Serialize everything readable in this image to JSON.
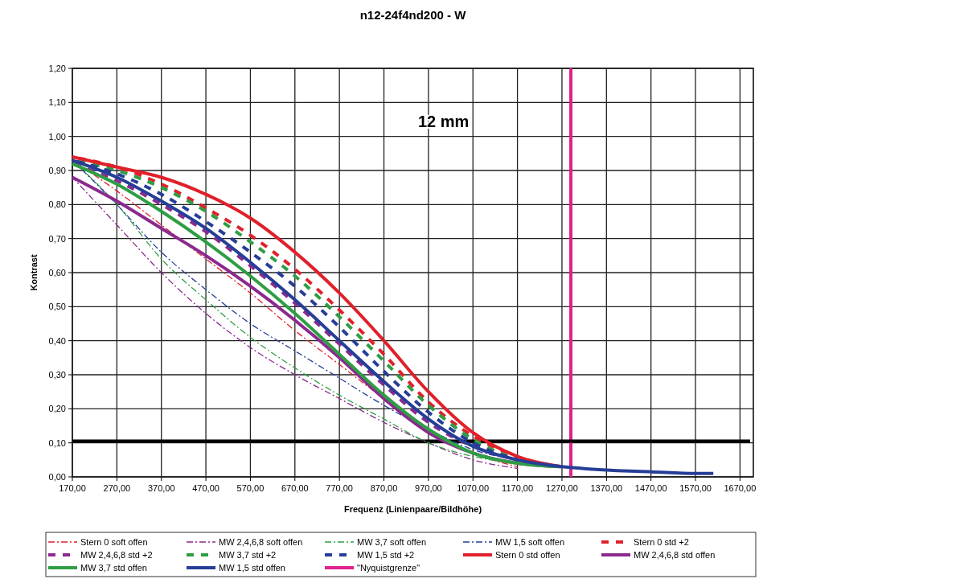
{
  "chart_data": {
    "type": "line",
    "title": "n12-24f4nd200 - W",
    "xlabel": "Frequenz (Linienpaare/Bildhöhe)",
    "ylabel": "Kontrast",
    "annotations": [
      "12 mm"
    ],
    "x": [
      170,
      270,
      370,
      470,
      570,
      670,
      770,
      870,
      970,
      1070,
      1170,
      1270,
      1370,
      1470,
      1570,
      1610
    ],
    "series": [
      {
        "name": "Stern 0 soft offen",
        "color": "#e0202a",
        "line_style": "dotted",
        "values": [
          0.93,
          0.84,
          0.74,
          0.64,
          0.54,
          0.43,
          0.33,
          0.23,
          0.14,
          0.07,
          0.03,
          null,
          null,
          null,
          null,
          null
        ]
      },
      {
        "name": "MW 2,4,6,8 soft offen",
        "color": "#8b2a8e",
        "line_style": "dotted",
        "values": [
          0.88,
          0.74,
          0.6,
          0.48,
          0.38,
          0.3,
          0.23,
          0.16,
          0.1,
          0.05,
          0.025,
          null,
          null,
          null,
          null,
          null
        ]
      },
      {
        "name": "MW 3,7 soft offen",
        "color": "#2e9e44",
        "line_style": "dotted",
        "values": [
          0.93,
          0.8,
          0.64,
          0.52,
          0.41,
          0.32,
          0.24,
          0.17,
          0.1,
          0.06,
          0.04,
          null,
          null,
          null,
          null,
          null
        ]
      },
      {
        "name": "MW 1,5 soft offen",
        "color": "#263e97",
        "line_style": "dotted",
        "values": [
          0.93,
          0.8,
          0.66,
          0.55,
          0.45,
          0.37,
          0.29,
          0.21,
          0.14,
          0.08,
          0.05,
          null,
          null,
          null,
          null,
          null
        ]
      },
      {
        "name": "Stern 0 std +2",
        "color": "#e0202a",
        "line_style": "dashed",
        "values": [
          0.94,
          0.91,
          0.86,
          0.79,
          0.71,
          0.61,
          0.49,
          0.36,
          0.22,
          0.12,
          0.06,
          null,
          null,
          null,
          null,
          null
        ]
      },
      {
        "name": "MW 2,4,6,8 std +2",
        "color": "#8b2a8e",
        "line_style": "dashed",
        "values": [
          0.92,
          0.87,
          0.8,
          0.72,
          0.62,
          0.51,
          0.39,
          0.27,
          0.16,
          0.09,
          0.05,
          null,
          null,
          null,
          null,
          null
        ]
      },
      {
        "name": "MW 3,7 std +2",
        "color": "#2e9e44",
        "line_style": "dashed",
        "values": [
          0.93,
          0.9,
          0.85,
          0.78,
          0.69,
          0.59,
          0.47,
          0.34,
          0.21,
          0.11,
          0.05,
          null,
          null,
          null,
          null,
          null
        ]
      },
      {
        "name": "MW 1,5 std +2",
        "color": "#263e97",
        "line_style": "dashed",
        "values": [
          0.93,
          0.89,
          0.83,
          0.75,
          0.66,
          0.56,
          0.44,
          0.31,
          0.19,
          0.1,
          0.05,
          null,
          null,
          null,
          null,
          null
        ]
      },
      {
        "name": "Stern 0 std offen",
        "color": "#e0202a",
        "line_style": "solid",
        "values": [
          0.94,
          0.91,
          0.88,
          0.83,
          0.76,
          0.66,
          0.54,
          0.4,
          0.25,
          0.13,
          0.06,
          0.03,
          null,
          null,
          null,
          null
        ]
      },
      {
        "name": "MW 2,4,6,8 std offen",
        "color": "#8b2a8e",
        "line_style": "solid",
        "values": [
          0.88,
          0.81,
          0.73,
          0.65,
          0.56,
          0.46,
          0.35,
          0.23,
          0.13,
          0.07,
          0.04,
          0.03,
          null,
          null,
          null,
          null
        ]
      },
      {
        "name": "MW 3,7 std offen",
        "color": "#2e9e44",
        "line_style": "solid",
        "values": [
          0.92,
          0.86,
          0.78,
          0.69,
          0.59,
          0.48,
          0.36,
          0.24,
          0.14,
          0.07,
          0.04,
          0.03,
          null,
          null,
          null,
          null
        ]
      },
      {
        "name": "MW 1,5 std offen",
        "color": "#263e97",
        "line_style": "solid",
        "values": [
          0.93,
          0.88,
          0.81,
          0.73,
          0.63,
          0.52,
          0.4,
          0.28,
          0.17,
          0.09,
          0.05,
          0.03,
          0.02,
          0.015,
          0.01,
          0.01
        ]
      }
    ],
    "ref_lines": [
      {
        "axis": "x",
        "value": 1290,
        "label": "\"Nyquistgrenze\"",
        "color": "#e0208c"
      },
      {
        "axis": "y",
        "value": 0.105,
        "color": "#000000"
      }
    ],
    "xlim": [
      170,
      1700
    ],
    "xticks": [
      {
        "value": 170,
        "label": "170,00"
      },
      {
        "value": 270,
        "label": "270,00"
      },
      {
        "value": 370,
        "label": "370,00"
      },
      {
        "value": 470,
        "label": "470,00"
      },
      {
        "value": 570,
        "label": "570,00"
      },
      {
        "value": 670,
        "label": "670,00"
      },
      {
        "value": 770,
        "label": "770,00"
      },
      {
        "value": 870,
        "label": "870,00"
      },
      {
        "value": 970,
        "label": "970,00"
      },
      {
        "value": 1070,
        "label": "1070,00"
      },
      {
        "value": 1170,
        "label": "1170,00"
      },
      {
        "value": 1270,
        "label": "1270,00"
      },
      {
        "value": 1370,
        "label": "1370,00"
      },
      {
        "value": 1470,
        "label": "1470,00"
      },
      {
        "value": 1570,
        "label": "1570,00"
      },
      {
        "value": 1670,
        "label": "1670,00"
      }
    ],
    "ylim": [
      0,
      1.2
    ],
    "yticks": [
      {
        "value": 0,
        "label": "0,00"
      },
      {
        "value": 0.1,
        "label": "0,10"
      },
      {
        "value": 0.2,
        "label": "0,20"
      },
      {
        "value": 0.3,
        "label": "0,30"
      },
      {
        "value": 0.4,
        "label": "0,40"
      },
      {
        "value": 0.5,
        "label": "0,50"
      },
      {
        "value": 0.6,
        "label": "0,60"
      },
      {
        "value": 0.7,
        "label": "0,70"
      },
      {
        "value": 0.8,
        "label": "0,80"
      },
      {
        "value": 0.9,
        "label": "0,90"
      },
      {
        "value": 1.0,
        "label": "1,00"
      },
      {
        "value": 1.1,
        "label": "1,10"
      },
      {
        "value": 1.2,
        "label": "1,20"
      }
    ],
    "grid": true,
    "legend": "bottom"
  }
}
